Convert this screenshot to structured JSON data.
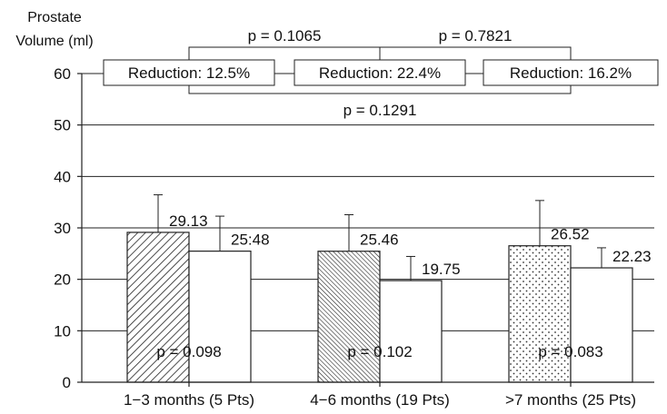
{
  "chart_data": {
    "type": "bar",
    "ylabel_lines": [
      "Prostate",
      "Volume (ml)"
    ],
    "ylim": [
      0,
      60
    ],
    "yticks": [
      "0",
      "10",
      "20",
      "30",
      "40",
      "50",
      "60"
    ],
    "grid": true,
    "categories": [
      "1−3 months (5 Pts)",
      "4−6 months (19 Pts)",
      ">7 months (25 Pts)"
    ],
    "series": [
      {
        "values": [
          29.13,
          25.46,
          26.52
        ],
        "errors": [
          7.3,
          7.1,
          8.8
        ],
        "patterns": [
          "diagonal-hatch",
          "dense-diagonal-hatch",
          "dotted"
        ]
      },
      {
        "values": [
          25.48,
          19.75,
          22.23
        ],
        "errors": [
          6.8,
          4.7,
          3.9
        ],
        "patterns": [
          "white",
          "white",
          "white"
        ]
      }
    ],
    "value_labels": {
      "series0": [
        "29.13",
        "25.46",
        "26.52"
      ],
      "series1": [
        "25:48",
        "19.75",
        "22.23"
      ]
    },
    "within_group_p": [
      "p = 0.098",
      "p = 0.102",
      "p = 0.083"
    ],
    "reductions": [
      "Reduction: 12.5%",
      "Reduction: 22.4%",
      "Reduction: 16.2%"
    ],
    "between_group_p": {
      "g1_g2": "p = 0.1065",
      "g2_g3": "p = 0.7821",
      "g1_g3": "p = 0.1291"
    }
  }
}
